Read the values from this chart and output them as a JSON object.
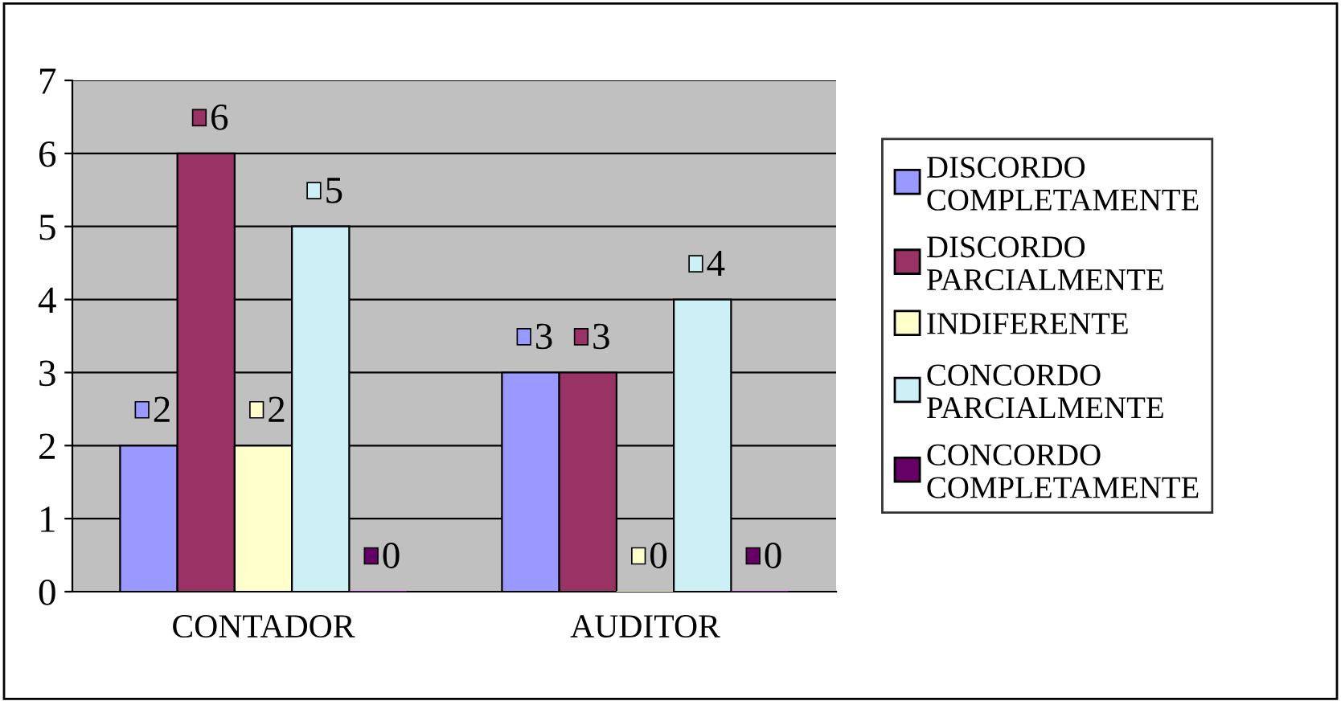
{
  "chart_data": {
    "type": "bar",
    "categories": [
      "CONTADOR",
      "AUDITOR"
    ],
    "series": [
      {
        "name": "DISCORDO COMPLETAMENTE",
        "color": "#9999ff",
        "values": [
          2,
          3
        ]
      },
      {
        "name": "DISCORDO PARCIALMENTE",
        "color": "#993366",
        "values": [
          6,
          3
        ]
      },
      {
        "name": "INDIFERENTE",
        "color": "#ffffcc",
        "values": [
          2,
          0
        ]
      },
      {
        "name": "CONCORDO PARCIALMENTE",
        "color": "#ccf0f5",
        "values": [
          5,
          4
        ]
      },
      {
        "name": "CONCORDO COMPLETAMENTE",
        "color": "#660066",
        "values": [
          0,
          0
        ]
      }
    ],
    "ylim": [
      0,
      7
    ],
    "yticks": [
      0,
      1,
      2,
      3,
      4,
      5,
      6,
      7
    ],
    "grid": "y",
    "legend": "right",
    "data_labels": true
  }
}
